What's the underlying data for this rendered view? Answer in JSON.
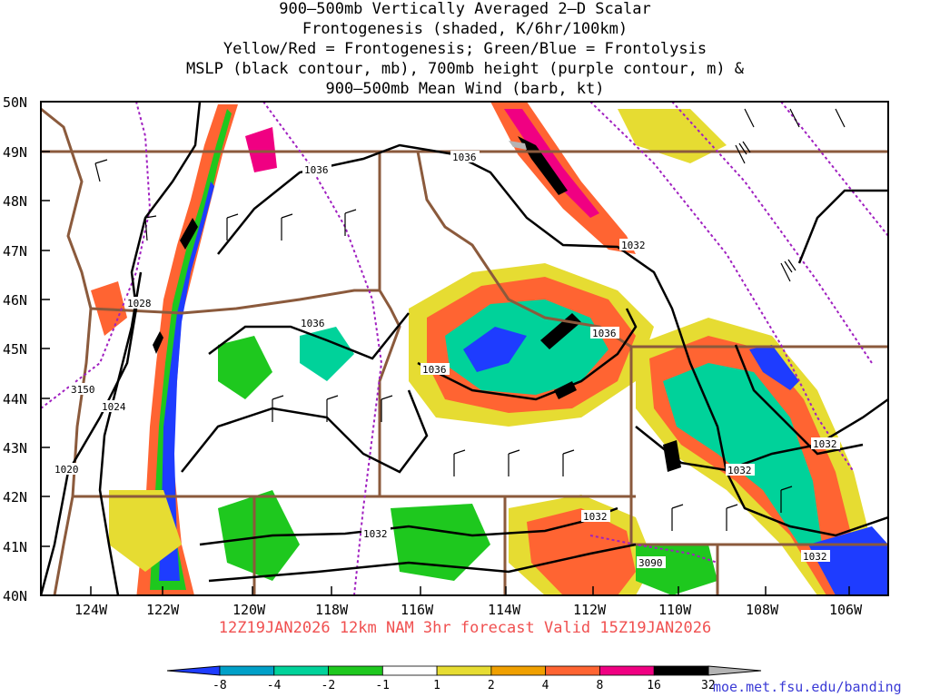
{
  "title_lines": [
    "900–500mb Vertically Averaged 2–D Scalar",
    "Frontogenesis (shaded, K/6hr/100km)",
    "Yellow/Red = Frontogenesis;  Green/Blue = Frontolysis",
    "MSLP (black contour, mb), 700mb height (purple contour, m) &",
    "900–500mb Mean Wind (barb, kt)"
  ],
  "subtitle": "12Z19JAN2026 12km NAM 3hr forecast Valid 15Z19JAN2026",
  "credit": "moe.met.fsu.edu/banding",
  "lat_labels": [
    "50N",
    "49N",
    "48N",
    "47N",
    "46N",
    "45N",
    "44N",
    "43N",
    "42N",
    "41N",
    "40N"
  ],
  "lon_labels": [
    "124W",
    "122W",
    "120W",
    "118W",
    "116W",
    "114W",
    "112W",
    "110W",
    "108W",
    "106W"
  ],
  "contour_labels": [
    "1036",
    "1036",
    "1032",
    "1028",
    "1036",
    "1036",
    "1036",
    "3150",
    "1024",
    "1020",
    "1032",
    "1032",
    "3090",
    "1032",
    "1032",
    "1032"
  ],
  "colorbar": {
    "labels": [
      "-8",
      "-4",
      "-2",
      "-1",
      "1",
      "2",
      "4",
      "8",
      "16",
      "32"
    ],
    "colors": [
      "#1e3cff",
      "#00a0c8",
      "#00d29a",
      "#1ec81e",
      "#ffffff",
      "#e6dc32",
      "#f0a000",
      "#ff6432",
      "#f00082",
      "#000000",
      "#b4b4b4"
    ]
  },
  "colors": {
    "state_borders": "#8b5a3c",
    "mslp": "#000000",
    "height_700": "#a020c0",
    "subtitle": "#f05050",
    "credit": "#3b3bd6"
  }
}
